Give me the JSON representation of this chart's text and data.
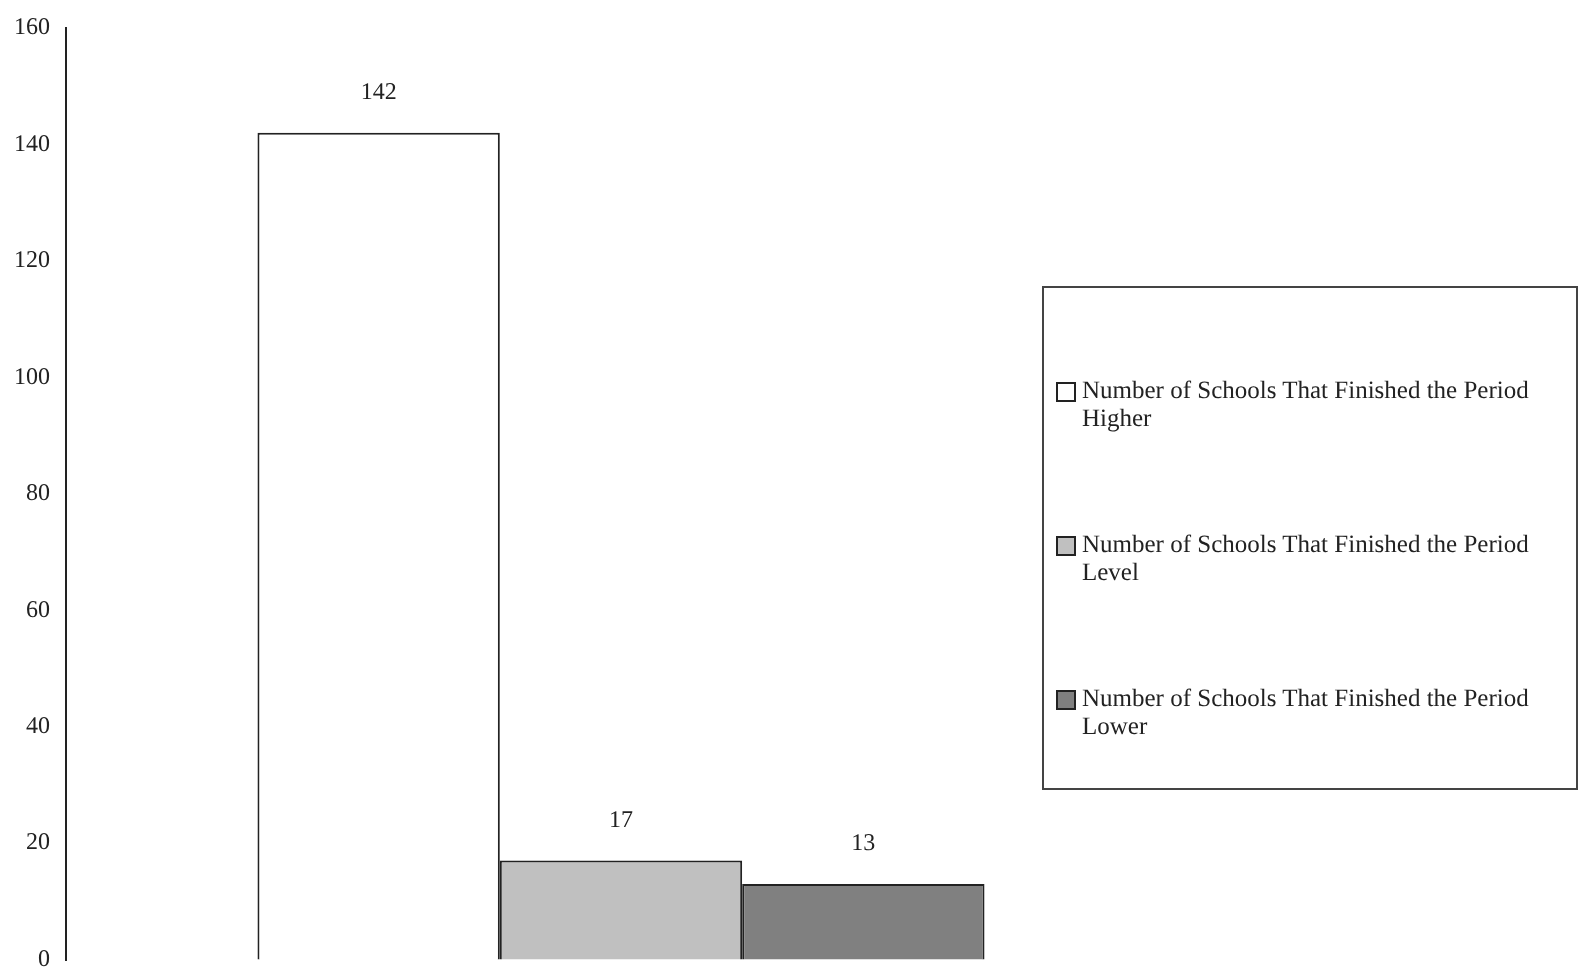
{
  "chart_data": {
    "type": "bar",
    "categories": [
      null
    ],
    "series": [
      {
        "name": "Number of Schools That Finished the Period Higher",
        "color": "#ffffff",
        "values": [
          142
        ]
      },
      {
        "name": "Number of Schools That Finished the Period Level",
        "color": "#c0c0c0",
        "values": [
          17
        ]
      },
      {
        "name": "Number of Schools That Finished the Period Lower",
        "color": "#808080",
        "values": [
          13
        ]
      }
    ],
    "ylim": [
      0,
      160
    ],
    "yticks": [
      0,
      20,
      40,
      60,
      80,
      100,
      120,
      140,
      160
    ],
    "grid": false,
    "legend": "right",
    "data_labels": true
  }
}
